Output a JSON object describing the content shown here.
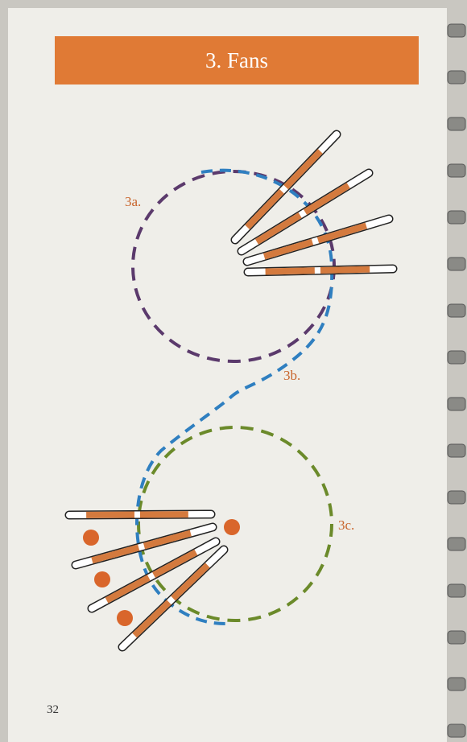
{
  "header": {
    "title": "3. Fans"
  },
  "diagram": {
    "labels": [
      "3a.",
      "3b.",
      "3c."
    ]
  },
  "footer": {
    "page_number": "32"
  }
}
